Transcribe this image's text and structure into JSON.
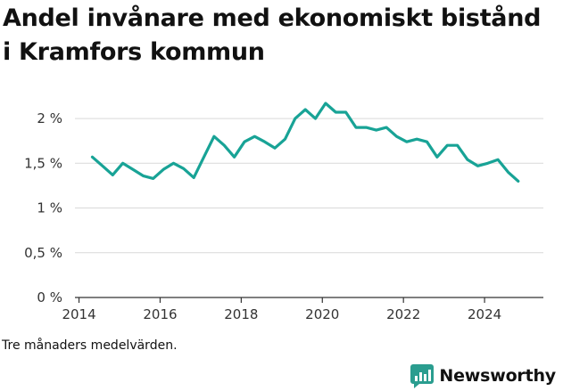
{
  "title": "Andel invånare med ekonomiskt bistånd i Kramfors kommun",
  "caption": "Tre månaders medelvärden.",
  "brand": {
    "name": "Newsworthy",
    "icon": "newsworthy-chart-logo-icon",
    "color": "#2a9d8f"
  },
  "chart_data": {
    "type": "line",
    "title": "Andel invånare med ekonomiskt bistånd i Kramfors kommun",
    "xlabel": "",
    "ylabel": "",
    "xlim": [
      2013.9,
      2025.45
    ],
    "ylim": [
      0,
      2.15
    ],
    "x_ticks": [
      2014,
      2016,
      2018,
      2020,
      2022,
      2024
    ],
    "x_tick_labels": [
      "2014",
      "2016",
      "2018",
      "2020",
      "2022",
      "2024"
    ],
    "y_ticks": [
      0,
      0.5,
      1,
      1.5,
      2
    ],
    "y_tick_labels": [
      "0 %",
      "0,5 %",
      "1 %",
      "1,5 %",
      "2 %"
    ],
    "grid": "horizontal",
    "legend": "none",
    "line_color": "#18a396",
    "series": [
      {
        "x": [
          2014.33,
          2014.58,
          2014.83,
          2015.08,
          2015.33,
          2015.58,
          2015.83,
          2016.08,
          2016.33,
          2016.58,
          2016.83,
          2017.08,
          2017.33,
          2017.58,
          2017.83,
          2018.08,
          2018.33,
          2018.58,
          2018.83,
          2019.08,
          2019.33,
          2019.58,
          2019.83,
          2020.08,
          2020.33,
          2020.58,
          2020.83,
          2021.08,
          2021.33,
          2021.58,
          2021.83,
          2022.08,
          2022.33,
          2022.58,
          2022.83,
          2023.08,
          2023.33,
          2023.58,
          2023.83,
          2024.08,
          2024.33,
          2024.58,
          2024.83
        ],
        "values": [
          1.57,
          1.47,
          1.37,
          1.5,
          1.43,
          1.36,
          1.33,
          1.43,
          1.5,
          1.44,
          1.34,
          1.57,
          1.8,
          1.7,
          1.57,
          1.74,
          1.8,
          1.74,
          1.67,
          1.77,
          2.0,
          2.1,
          2.0,
          2.17,
          2.07,
          2.07,
          1.9,
          1.9,
          1.87,
          1.9,
          1.8,
          1.74,
          1.77,
          1.74,
          1.57,
          1.7,
          1.7,
          1.54,
          1.47,
          1.5,
          1.54,
          1.4,
          1.3
        ]
      }
    ]
  }
}
